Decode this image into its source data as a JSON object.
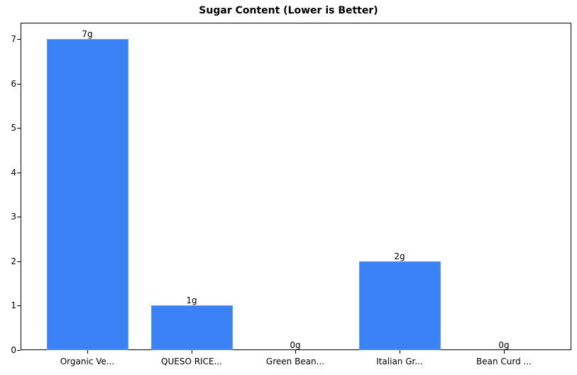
{
  "chart_data": {
    "type": "bar",
    "title": "Sugar Content (Lower is Better)",
    "xlabel": "",
    "ylabel": "",
    "categories": [
      "Organic Ve...",
      "QUESO RICE...",
      "Green Bean...",
      "Italian Gr...",
      "Bean Curd ..."
    ],
    "values": [
      7,
      1,
      0,
      2,
      0
    ],
    "value_labels": [
      "7g",
      "1g",
      "0g",
      "2g",
      "0g"
    ],
    "ylim": [
      0,
      7.35
    ],
    "yticks": [
      0,
      1,
      2,
      3,
      4,
      5,
      6,
      7
    ],
    "grid": false,
    "legend": null,
    "bar_color": "#3b82f6"
  }
}
